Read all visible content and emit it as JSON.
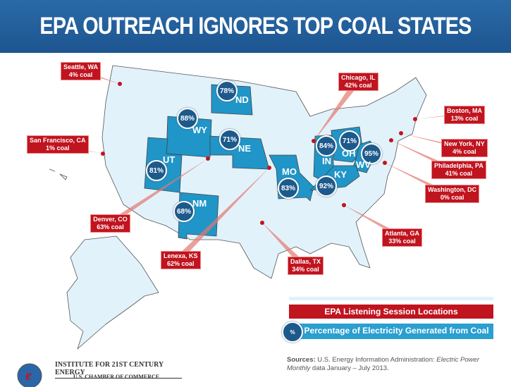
{
  "title": "EPA OUTREACH IGNORES TOP COAL STATES",
  "colors": {
    "header": "#1f5c98",
    "map_fill": "#e2f2fb",
    "highlight_state": "#2095c8",
    "circle": "#1d5a8c",
    "callout": "#c0141f"
  },
  "states": [
    {
      "abbr": "ND",
      "coal": "78%"
    },
    {
      "abbr": "WY",
      "coal": "88%"
    },
    {
      "abbr": "NE",
      "coal": "71%"
    },
    {
      "abbr": "UT",
      "coal": "81%"
    },
    {
      "abbr": "NM",
      "coal": "68%"
    },
    {
      "abbr": "MO",
      "coal": "83%"
    },
    {
      "abbr": "IN",
      "coal": "84%"
    },
    {
      "abbr": "OH",
      "coal": "71%"
    },
    {
      "abbr": "WV",
      "coal": "95%"
    },
    {
      "abbr": "KY",
      "coal": "92%"
    }
  ],
  "sessions": [
    {
      "city": "Seattle, WA",
      "coal": "4% coal"
    },
    {
      "city": "San Francisco, CA",
      "coal": "1% coal"
    },
    {
      "city": "Denver, CO",
      "coal": "63% coal"
    },
    {
      "city": "Lenexa, KS",
      "coal": "62% coal"
    },
    {
      "city": "Dallas, TX",
      "coal": "34% coal"
    },
    {
      "city": "Atlanta, GA",
      "coal": "33% coal"
    },
    {
      "city": "Chicago, IL",
      "coal": "42% coal"
    },
    {
      "city": "Boston, MA",
      "coal": "13% coal"
    },
    {
      "city": "New York, NY",
      "coal": "4% coal"
    },
    {
      "city": "Philadelphia, PA",
      "coal": "41% coal"
    },
    {
      "city": "Washington, DC",
      "coal": "0% coal"
    }
  ],
  "legend": {
    "sessions": "EPA Listening Session Locations",
    "percent_symbol": "%",
    "percent": "Percentage of Electricity Generated from Coal"
  },
  "logo": {
    "institute": "INSTITUTE FOR 21ST CENTURY ENERGY",
    "chamber": "U.S. CHAMBER OF COMMERCE",
    "mark": "e"
  },
  "sources": {
    "label": "Sources:",
    "text": "U.S. Energy Information Administration: ",
    "italic": "Electric Power Monthly",
    "text2": " data January – July 2013."
  }
}
